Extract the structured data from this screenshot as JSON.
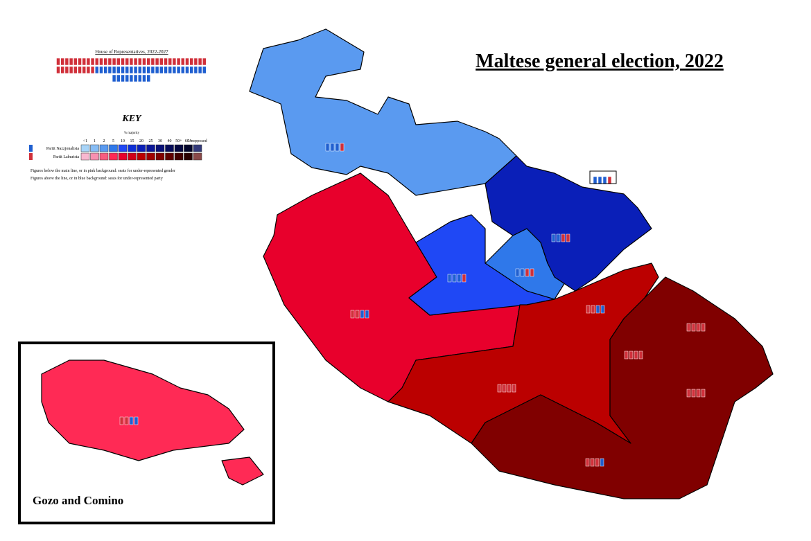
{
  "title": "Maltese general election, 2022",
  "parliament": {
    "title": "House of Representatives, 2022-2027",
    "labour_seats": 44,
    "nationalist_seats": 35
  },
  "key": {
    "title": "KEY",
    "subtitle": "% majority",
    "levels": [
      "<1",
      "1",
      "2",
      "5",
      "10",
      "15",
      "20",
      "25",
      "30",
      "40",
      "50+",
      "60+",
      "Unopposed"
    ],
    "parties": [
      {
        "name": "Partit Nazzjonalista",
        "color": "#1f5fd0",
        "shades": [
          "#a8d4f8",
          "#87bdf5",
          "#5a9af0",
          "#2f78ea",
          "#1f48f5",
          "#0d2fd6",
          "#0a1fb8",
          "#0a1698",
          "#081078",
          "#060c5a",
          "#040840",
          "#02052a",
          "#333a7a"
        ]
      },
      {
        "name": "Partit Laburista",
        "color": "#d0303a",
        "shades": [
          "#f8b8d0",
          "#f890b0",
          "#f85c80",
          "#ff2a55",
          "#e8002c",
          "#d00018",
          "#bb0000",
          "#a00000",
          "#800000",
          "#600000",
          "#420000",
          "#2a0000",
          "#8a4a4a"
        ]
      }
    ],
    "notes": [
      "Figures below the main line, or in pink background: seats for under-represented gender",
      "Figures above the line, or in blue background: seats for under-represented party"
    ]
  },
  "inset": {
    "label": "Gozo and Comino"
  }
}
